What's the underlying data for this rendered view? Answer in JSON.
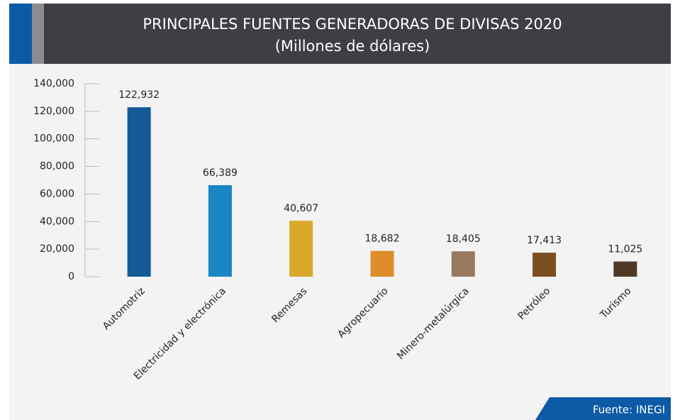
{
  "chart_data": {
    "type": "bar",
    "title": "PRINCIPALES FUENTES GENERADORAS DE DIVISAS 2020",
    "subtitle": "(Millones de dólares)",
    "source": "Fuente: INEGI",
    "categories": [
      "Automotriz",
      "Electricidad y electrónica",
      "Remesas",
      "Agropecuario",
      "Minero-metalúrgica",
      "Petróleo",
      "Turismo"
    ],
    "values": [
      122932,
      66389,
      40607,
      18682,
      18405,
      17413,
      11025
    ],
    "value_labels": [
      "122,932",
      "66,389",
      "40,607",
      "18,682",
      "18,405",
      "17,413",
      "11,025"
    ],
    "colors": [
      "#135a96",
      "#1a86c4",
      "#d9a82b",
      "#e08c2a",
      "#9a7a5e",
      "#7a4e1e",
      "#4f3925"
    ],
    "ylim": [
      0,
      140000
    ],
    "yticks": [
      0,
      {
        "value": 20000,
        "label": "20,000"
      },
      {
        "value": 40000,
        "label": "40,000"
      },
      {
        "value": 60000,
        "label": "60,000"
      },
      {
        "value": 80000,
        "label": "80,000"
      },
      {
        "value": 100000,
        "label": "100,000"
      },
      {
        "value": 120000,
        "label": "120,000"
      },
      {
        "value": 140000,
        "label": "140,000"
      }
    ],
    "grid": false
  }
}
